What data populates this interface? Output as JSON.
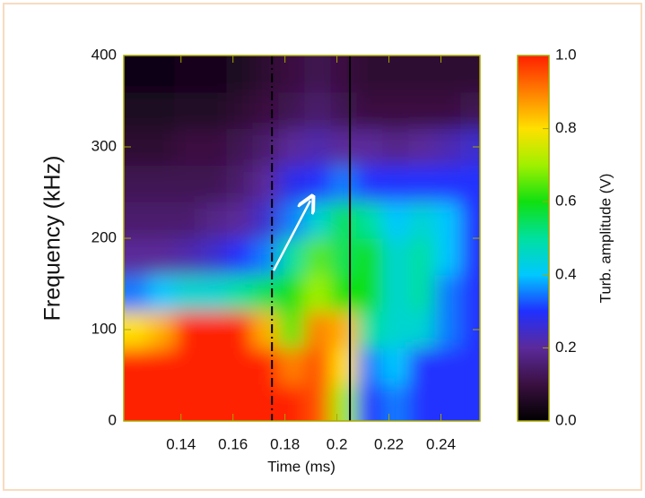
{
  "chart_data": {
    "type": "heatmap",
    "xlabel": "Time (ms)",
    "ylabel": "Frequency (kHz)",
    "colorbar_label": "Turb. amplitude (V)",
    "x": [
      0.1225,
      0.1325,
      0.1425,
      0.1525,
      0.1625,
      0.1725,
      0.1825,
      0.1925,
      0.2025,
      0.2125,
      0.2225,
      0.2325,
      0.2425,
      0.2525
    ],
    "y": [
      20,
      60,
      100,
      140,
      180,
      220,
      260,
      300,
      340,
      380
    ],
    "z": [
      [
        1,
        1,
        1,
        1,
        1,
        1,
        1,
        0.95,
        0.7,
        0.3,
        0.35,
        0.3,
        0.3,
        0.3
      ],
      [
        1,
        1,
        1,
        1,
        1,
        1,
        0.9,
        0.95,
        0.8,
        0.35,
        0.4,
        0.3,
        0.3,
        0.3
      ],
      [
        0.8,
        0.85,
        1,
        1,
        1,
        0.85,
        0.65,
        0.9,
        0.85,
        0.5,
        0.45,
        0.45,
        0.35,
        0.3
      ],
      [
        0.35,
        0.4,
        0.45,
        0.45,
        0.5,
        0.55,
        0.6,
        0.7,
        0.6,
        0.6,
        0.45,
        0.5,
        0.35,
        0.3
      ],
      [
        0.2,
        0.2,
        0.22,
        0.25,
        0.3,
        0.35,
        0.5,
        0.65,
        0.55,
        0.6,
        0.45,
        0.5,
        0.4,
        0.3
      ],
      [
        0.15,
        0.15,
        0.15,
        0.18,
        0.2,
        0.25,
        0.35,
        0.45,
        0.55,
        0.5,
        0.4,
        0.45,
        0.4,
        0.3
      ],
      [
        0.12,
        0.12,
        0.12,
        0.12,
        0.15,
        0.2,
        0.28,
        0.3,
        0.35,
        0.3,
        0.3,
        0.3,
        0.3,
        0.3
      ],
      [
        0.08,
        0.08,
        0.1,
        0.1,
        0.12,
        0.15,
        0.2,
        0.22,
        0.2,
        0.2,
        0.18,
        0.2,
        0.22,
        0.25
      ],
      [
        0.05,
        0.05,
        0.06,
        0.06,
        0.08,
        0.1,
        0.12,
        0.15,
        0.12,
        0.1,
        0.1,
        0.1,
        0.1,
        0.12
      ],
      [
        0.03,
        0.03,
        0.04,
        0.04,
        0.05,
        0.08,
        0.1,
        0.12,
        0.1,
        0.08,
        0.08,
        0.08,
        0.08,
        0.08
      ]
    ],
    "xlim": [
      0.118,
      0.255
    ],
    "xticks": [
      0.14,
      0.16,
      0.18,
      0.2,
      0.22,
      0.24
    ],
    "ylim": [
      0,
      400
    ],
    "yticks": [
      0,
      100,
      200,
      300,
      400
    ],
    "zlim": [
      0,
      1
    ],
    "zticks": [
      {
        "value": 0,
        "label": "0.0"
      },
      0.2,
      0.4,
      0.6,
      0.8,
      {
        "value": 1,
        "label": "1.0"
      }
    ],
    "colorscale": [
      "#000000",
      "#3a1040",
      "#5b2a9a",
      "#2030ff",
      "#00c8ff",
      "#00e0a0",
      "#10e010",
      "#a0f000",
      "#ffe000",
      "#ff8000",
      "#ff2000"
    ],
    "vlines": [
      {
        "value": 0.175,
        "style": "dashdot"
      },
      {
        "value": 0.205,
        "style": "solid"
      }
    ]
  }
}
